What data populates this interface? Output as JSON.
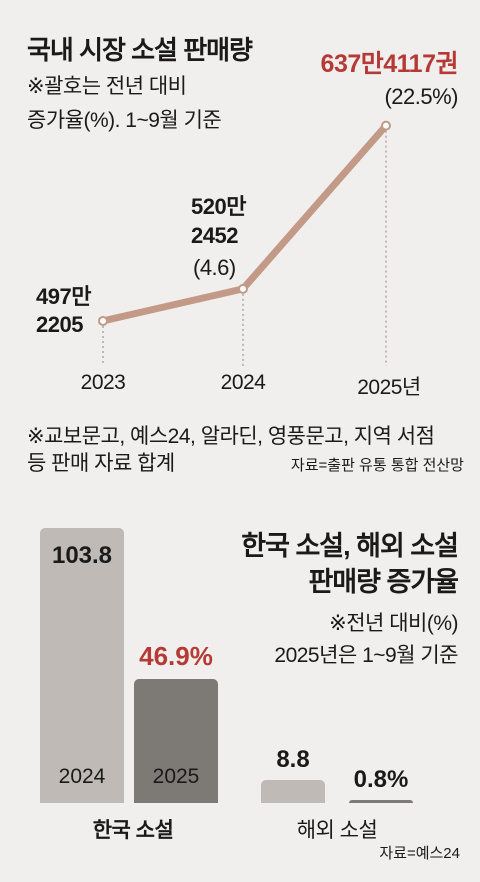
{
  "top": {
    "title": "국내 시장 소설 판매량",
    "note_line1": "※괄호는 전년 대비",
    "note_line2": "증가율(%). 1~9월 기준",
    "footnote_line1": "※교보문고, 예스24, 알라딘, 영풍문고, 지역 서점",
    "footnote_line2": "등 판매 자료 합계",
    "source": "자료=출판 유통 통합 전산망"
  },
  "bottom": {
    "title_line1": "한국 소설, 해외 소설",
    "title_line2": "판매량 증가율",
    "note_line1": "※전년 대비(%)",
    "note_line2": "2025년은 1~9월 기준",
    "source": "자료=예스24"
  },
  "colors": {
    "line": "#c29a87",
    "highlight_text": "#b53a36",
    "bar_2024": "#bfbab5",
    "bar_2025": "#7d7a76",
    "background": "#f1efed"
  },
  "chart_data": [
    {
      "type": "line",
      "title": "국내 시장 소설 판매량",
      "x": [
        "2023",
        "2024",
        "2025"
      ],
      "x_tick_labels": [
        "2023",
        "2024",
        "2025년"
      ],
      "values": [
        4972205,
        5202452,
        6374117
      ],
      "point_labels": [
        {
          "line1": "497만",
          "line2": "2205",
          "change": ""
        },
        {
          "line1": "520만",
          "line2": "2452",
          "change": "(4.6)"
        },
        {
          "line1": "637만4117권",
          "line2": "",
          "change": "(22.5%)"
        }
      ],
      "growth_pct": [
        null,
        4.6,
        22.5
      ],
      "ylim": [
        4900000,
        6400000
      ],
      "grid": false
    },
    {
      "type": "bar",
      "title": "한국 소설, 해외 소설 판매량 증가율",
      "categories": [
        "한국 소설",
        "해외 소설"
      ],
      "series": [
        {
          "name": "2024",
          "values": [
            103.8,
            8.8
          ],
          "labels": [
            "103.8",
            "8.8"
          ]
        },
        {
          "name": "2025",
          "values": [
            46.9,
            0.8
          ],
          "labels": [
            "46.9%",
            "0.8%"
          ]
        }
      ],
      "ylim": [
        0,
        103.8
      ],
      "grid": false
    }
  ]
}
